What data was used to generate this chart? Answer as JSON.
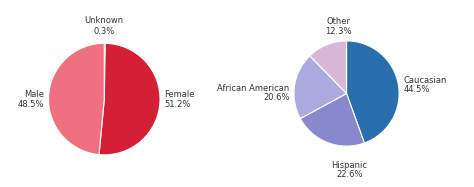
{
  "pie1": {
    "values": [
      0.3,
      51.2,
      48.5
    ],
    "colors": [
      "#e8505a",
      "#d42035",
      "#f07080"
    ],
    "label_names": [
      "Unknown",
      "Female",
      "Male"
    ],
    "label_pcts": [
      "0.3%",
      "51.2%",
      "48.5%"
    ],
    "startangle": 90
  },
  "pie2": {
    "values": [
      44.5,
      22.6,
      20.6,
      12.3
    ],
    "colors": [
      "#2a6fad",
      "#8888cc",
      "#aaaadd",
      "#d8b8d8"
    ],
    "label_names": [
      "Caucasian",
      "Hispanic",
      "African American",
      "Other"
    ],
    "label_pcts": [
      "44.5%",
      "22.6%",
      "20.6%",
      "12.3%"
    ],
    "startangle": 90
  },
  "background_color": "#ffffff",
  "label_fontsize": 6.0,
  "label_color": "#333333"
}
